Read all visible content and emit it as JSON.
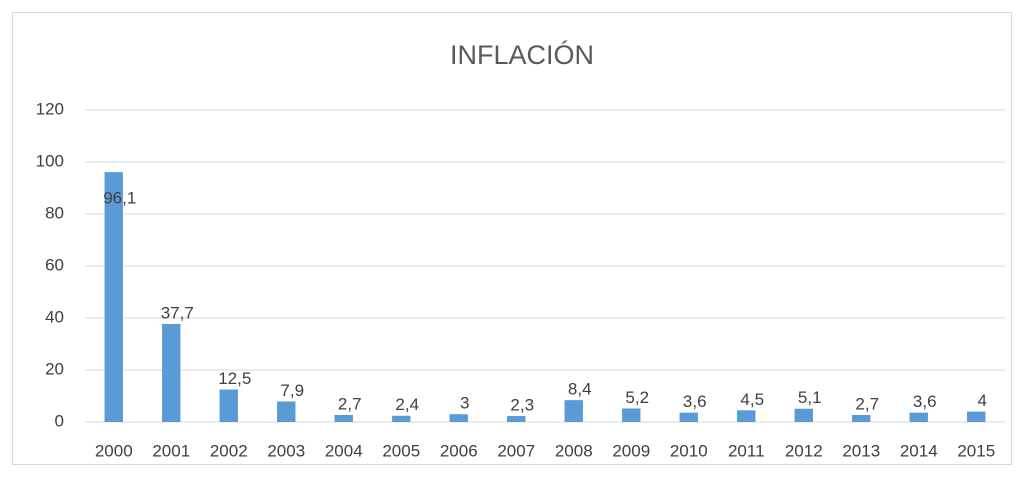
{
  "chart_data": {
    "type": "bar",
    "title": "INFLACIÓN",
    "categories": [
      "2000",
      "2001",
      "2002",
      "2003",
      "2004",
      "2005",
      "2006",
      "2007",
      "2008",
      "2009",
      "2010",
      "2011",
      "2012",
      "2013",
      "2014",
      "2015"
    ],
    "values": [
      96.1,
      37.7,
      12.5,
      7.9,
      2.7,
      2.4,
      3,
      2.3,
      8.4,
      5.2,
      3.6,
      4.5,
      5.1,
      2.7,
      3.6,
      4
    ],
    "value_labels": [
      "96,1",
      "37,7",
      "12,5",
      "7,9",
      "2,7",
      "2,4",
      "3",
      "2,3",
      "8,4",
      "5,2",
      "3,6",
      "4,5",
      "5,1",
      "2,7",
      "3,6",
      "4"
    ],
    "color": "#5b9bd5",
    "ylim": [
      0,
      120
    ],
    "yticks": [
      0,
      20,
      40,
      60,
      80,
      100,
      120
    ],
    "grid": true
  }
}
